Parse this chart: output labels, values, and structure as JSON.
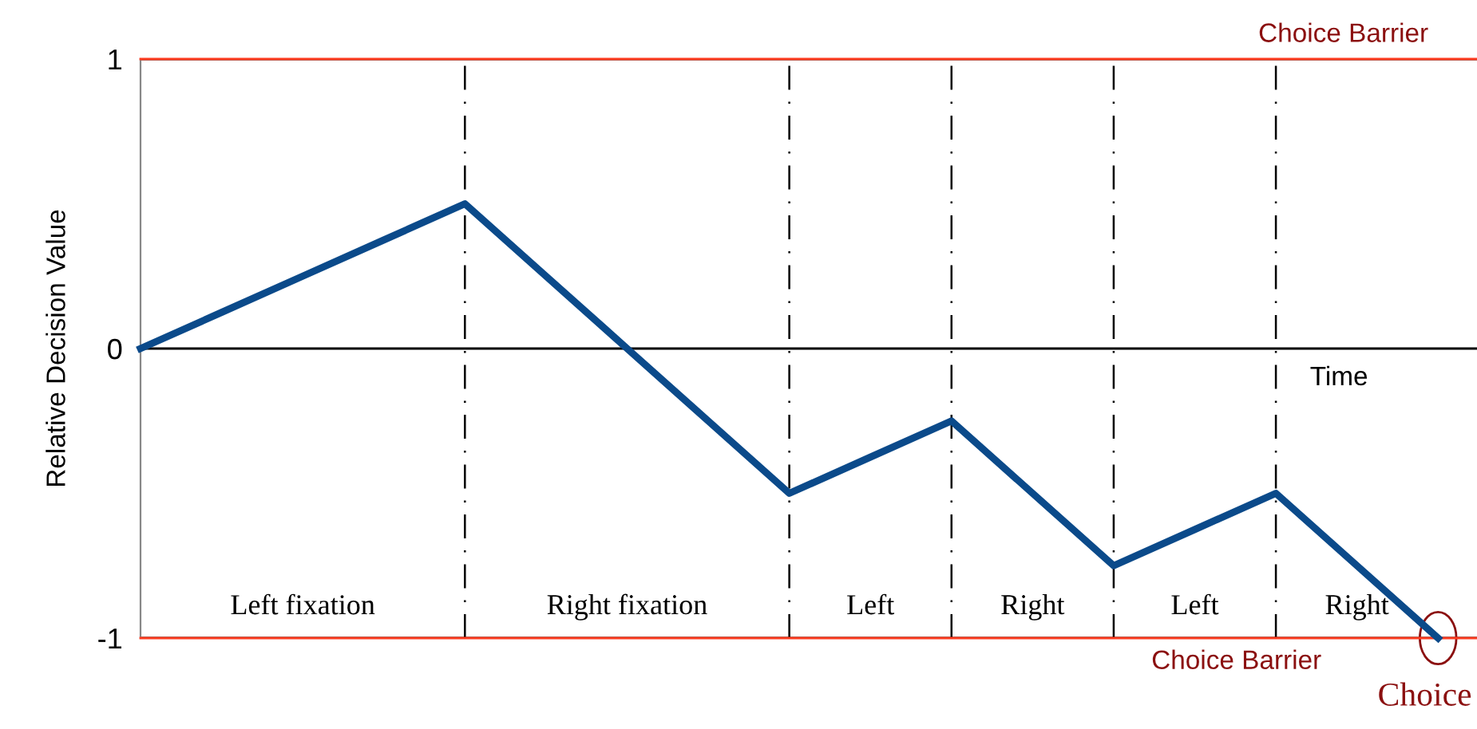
{
  "chart_data": {
    "type": "line",
    "ylabel": "Relative Decision Value",
    "xlabel": "Time",
    "categories": [
      null,
      null,
      "Left fixation",
      null,
      null,
      null,
      "Right fixation",
      null,
      null,
      "Left",
      null,
      "Right",
      null,
      "Left",
      null,
      "Right",
      null
    ],
    "series": [
      {
        "color": "#0b4a8a",
        "values": [
          0,
          0.125,
          0.25,
          0.375,
          0.5,
          0.25,
          0,
          -0.25,
          -0.5,
          -0.375,
          -0.25,
          -0.5,
          -0.75,
          -0.625,
          -0.5,
          -0.75,
          -1
        ]
      }
    ],
    "ylim": [
      -1,
      1
    ],
    "yticks": [
      {
        "value": -1,
        "label": "-1"
      },
      0,
      1
    ],
    "grid": true,
    "marker": "none",
    "line_style": "solid",
    "ref_lines": [
      {
        "axis": "y",
        "value": 1,
        "label": "Choice Barrier",
        "color": "#ff3b1f"
      },
      {
        "axis": "y",
        "value": -1,
        "label": "Choice Barrier",
        "color": "#ff3b1f"
      }
    ],
    "annotations": [
      "Choice"
    ]
  }
}
